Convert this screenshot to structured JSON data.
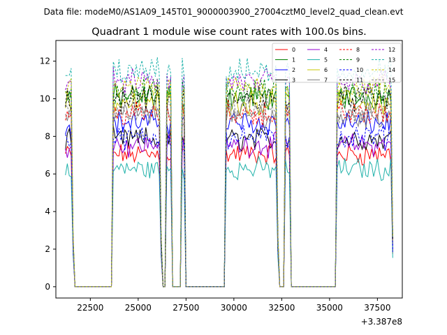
{
  "chart_data": {
    "type": "line",
    "suptitle": "Data file: modeM0/AS1A09_145T01_9000003900_27004cztM0_level2_quad_clean.evt",
    "title": "Quadrant 1 module wise count rates with 100.0s bins.",
    "xlabel": "",
    "ylabel": "",
    "x_offset_label": "+3.387e8",
    "xlim": [
      20700,
      38800
    ],
    "ylim": [
      -0.6,
      13.1
    ],
    "x_ticks": [
      22500,
      25000,
      27500,
      30000,
      32500,
      35000,
      37500
    ],
    "y_ticks": [
      0,
      2,
      4,
      6,
      8,
      10,
      12
    ],
    "x_tick_labels": [
      "22500",
      "25000",
      "27500",
      "30000",
      "32500",
      "35000",
      "37500"
    ],
    "y_tick_labels": [
      "0",
      "2",
      "4",
      "6",
      "8",
      "10",
      "12"
    ],
    "segments": [
      [
        21200,
        21600
      ],
      [
        23700,
        26200
      ],
      [
        26500,
        26700
      ],
      [
        27300,
        27400
      ],
      [
        29600,
        32300
      ],
      [
        32700,
        32900
      ],
      [
        35400,
        38300
      ]
    ],
    "series": [
      {
        "name": "0",
        "level": 7.2,
        "color": "#ff0000",
        "dash": "solid"
      },
      {
        "name": "1",
        "level": 10.3,
        "color": "#008000",
        "dash": "solid"
      },
      {
        "name": "2",
        "level": 8.9,
        "color": "#0000ff",
        "dash": "solid"
      },
      {
        "name": "3",
        "level": 8.0,
        "color": "#000000",
        "dash": "solid"
      },
      {
        "name": "4",
        "level": 7.7,
        "color": "#9400d3",
        "dash": "solid"
      },
      {
        "name": "5",
        "level": 6.4,
        "color": "#20b2aa",
        "dash": "solid"
      },
      {
        "name": "6",
        "level": 10.0,
        "color": "#c8c800",
        "dash": "solid"
      },
      {
        "name": "7",
        "level": 9.3,
        "color": "#808080",
        "dash": "solid"
      },
      {
        "name": "8",
        "level": 9.4,
        "color": "#ff0000",
        "dash": "dashed"
      },
      {
        "name": "9",
        "level": 10.6,
        "color": "#008000",
        "dash": "dashed"
      },
      {
        "name": "10",
        "level": 8.1,
        "color": "#0000ff",
        "dash": "dashed"
      },
      {
        "name": "11",
        "level": 10.2,
        "color": "#000000",
        "dash": "dashed"
      },
      {
        "name": "12",
        "level": 11.1,
        "color": "#9400d3",
        "dash": "dashed"
      },
      {
        "name": "13",
        "level": 11.6,
        "color": "#20b2aa",
        "dash": "dashed"
      },
      {
        "name": "14",
        "level": 10.8,
        "color": "#c8c800",
        "dash": "dashed"
      },
      {
        "name": "15",
        "level": 9.6,
        "color": "#808080",
        "dash": "dashed"
      }
    ],
    "legend_position": "top-right",
    "legend_columns": 4,
    "grid": false
  }
}
